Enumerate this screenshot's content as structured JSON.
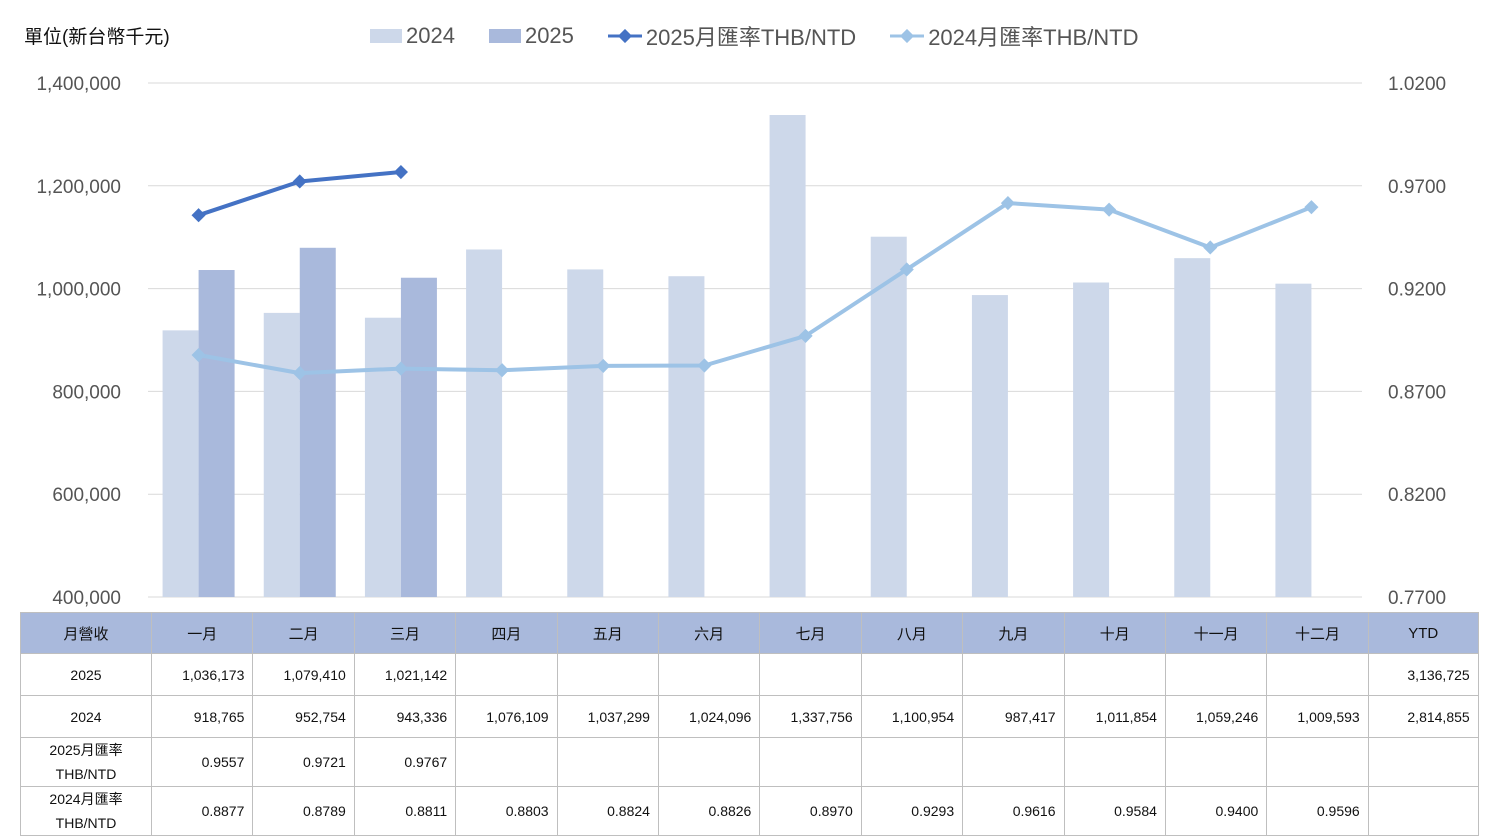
{
  "chart_data": {
    "type": "bar+line",
    "unit_label": "單位(新台幣千元)",
    "categories": [
      "一月",
      "二月",
      "三月",
      "四月",
      "五月",
      "六月",
      "七月",
      "八月",
      "九月",
      "十月",
      "十一月",
      "十二月"
    ],
    "series": [
      {
        "name": "2024",
        "type": "bar",
        "axis": "left",
        "color": "#cdd8ea",
        "values": [
          918765,
          952754,
          943336,
          1076109,
          1037299,
          1024096,
          1337756,
          1100954,
          987417,
          1011854,
          1059246,
          1009593
        ]
      },
      {
        "name": "2025",
        "type": "bar",
        "axis": "left",
        "color": "#a9b9dc",
        "values": [
          1036173,
          1079410,
          1021142,
          null,
          null,
          null,
          null,
          null,
          null,
          null,
          null,
          null
        ]
      },
      {
        "name": "2025月匯率THB/NTD",
        "type": "line",
        "axis": "right",
        "color": "#4472c4",
        "values": [
          0.9557,
          0.9721,
          0.9767,
          null,
          null,
          null,
          null,
          null,
          null,
          null,
          null,
          null
        ]
      },
      {
        "name": "2024月匯率THB/NTD",
        "type": "line",
        "axis": "right",
        "color": "#9dc3e6",
        "values": [
          0.8877,
          0.8789,
          0.8811,
          0.8803,
          0.8824,
          0.8826,
          0.897,
          0.9293,
          0.9616,
          0.9584,
          0.94,
          0.9596
        ]
      }
    ],
    "y_left": {
      "min": 400000,
      "max": 1400000,
      "step": 200000,
      "ticks": [
        "400,000",
        "600,000",
        "800,000",
        "1,000,000",
        "1,200,000",
        "1,400,000"
      ]
    },
    "y_right": {
      "min": 0.77,
      "max": 1.02,
      "step": 0.05,
      "ticks": [
        "0.7700",
        "0.8200",
        "0.8700",
        "0.9200",
        "0.9700",
        "1.0200"
      ]
    },
    "grid": true,
    "legend_position": "top"
  },
  "table": {
    "headers": [
      "月營收",
      "一月",
      "二月",
      "三月",
      "四月",
      "五月",
      "六月",
      "七月",
      "八月",
      "九月",
      "十月",
      "十一月",
      "十二月",
      "YTD"
    ],
    "rows": [
      {
        "label": "2025",
        "cells": [
          "1,036,173",
          "1,079,410",
          "1,021,142",
          "",
          "",
          "",
          "",
          "",
          "",
          "",
          "",
          "",
          "3,136,725"
        ]
      },
      {
        "label": "2024",
        "cells": [
          "918,765",
          "952,754",
          "943,336",
          "1,076,109",
          "1,037,299",
          "1,024,096",
          "1,337,756",
          "1,100,954",
          "987,417",
          "1,011,854",
          "1,059,246",
          "1,009,593",
          "2,814,855"
        ]
      },
      {
        "label_line1": "2025月匯率",
        "label_line2": "THB/NTD",
        "cells": [
          "0.9557",
          "0.9721",
          "0.9767",
          "",
          "",
          "",
          "",
          "",
          "",
          "",
          "",
          "",
          ""
        ]
      },
      {
        "label_line1": "2024月匯率",
        "label_line2": "THB/NTD",
        "cells": [
          "0.8877",
          "0.8789",
          "0.8811",
          "0.8803",
          "0.8824",
          "0.8826",
          "0.8970",
          "0.9293",
          "0.9616",
          "0.9584",
          "0.9400",
          "0.9596",
          ""
        ]
      }
    ]
  }
}
